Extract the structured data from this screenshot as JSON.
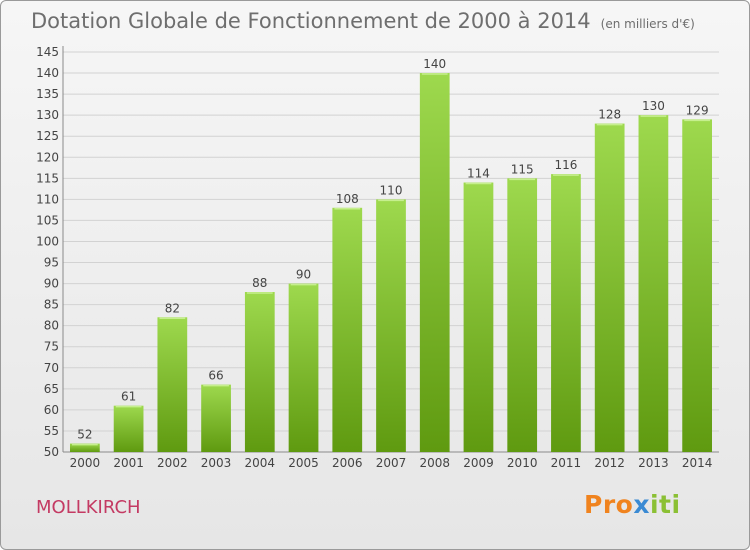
{
  "header": {
    "title": "Dotation Globale de Fonctionnement de 2000 à 2014",
    "unit": "(en milliers d'€)"
  },
  "footer": {
    "commune": "MOLLKIRCH",
    "logo_text": "Proxiti"
  },
  "colors": {
    "bar_light": "#9ed94e",
    "bar_dark": "#5f9a10",
    "commune": "#c43a63",
    "logo_orange": "#f0831e",
    "logo_blue": "#3a8ad3",
    "logo_green": "#8bc034"
  },
  "chart_data": {
    "type": "bar",
    "title": "Dotation Globale de Fonctionnement de 2000 à 2014",
    "subtitle": "(en milliers d'€)",
    "xlabel": "",
    "ylabel": "",
    "categories": [
      "2000",
      "2001",
      "2002",
      "2003",
      "2004",
      "2005",
      "2006",
      "2007",
      "2008",
      "2009",
      "2010",
      "2011",
      "2012",
      "2013",
      "2014"
    ],
    "values": [
      52,
      61,
      82,
      66,
      88,
      90,
      108,
      110,
      140,
      114,
      115,
      116,
      128,
      130,
      129
    ],
    "ylim": [
      50,
      145
    ],
    "yticks": [
      50,
      55,
      60,
      65,
      70,
      75,
      80,
      85,
      90,
      95,
      100,
      105,
      110,
      115,
      120,
      125,
      130,
      135,
      140,
      145
    ],
    "grid": true,
    "data_labels": true
  }
}
